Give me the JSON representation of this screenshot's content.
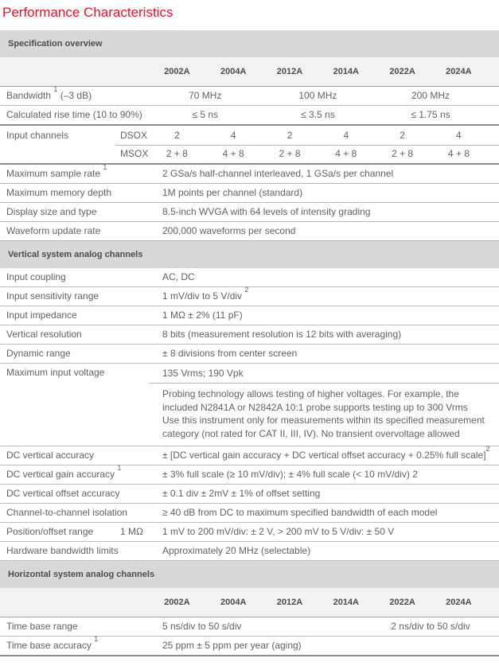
{
  "title": "Performance Characteristics",
  "accent_color": "#e8112d",
  "models": [
    "2002A",
    "2004A",
    "2012A",
    "2014A",
    "2022A",
    "2024A"
  ],
  "section_headers": {
    "overview": "Specification overview",
    "vertical": "Vertical system analog channels",
    "horizontal": "Horizontal system analog channels"
  },
  "overview": {
    "bandwidth": {
      "label": "Bandwidth ",
      "sup": "1",
      "label_rest": " (–3 dB)",
      "values": [
        "70 MHz",
        "100 MHz",
        "200 MHz"
      ]
    },
    "rise_time": {
      "label": "Calculated rise time (10 to 90%)",
      "values": [
        "≤ 5 ns",
        "≤ 3.5 ns",
        "≤ 1.75 ns"
      ]
    },
    "input_channels": {
      "label": "Input channels",
      "dsox": {
        "label": "DSOX",
        "values": [
          "2",
          "4",
          "2",
          "4",
          "2",
          "4"
        ]
      },
      "msox": {
        "label": "MSOX",
        "values": [
          "2 + 8",
          "4 + 8",
          "2 + 8",
          "4 + 8",
          "2 + 8",
          "4 + 8"
        ]
      }
    },
    "sample_rate": {
      "label": "Maximum sample rate ",
      "sup": "1",
      "value": "2 GSa/s half-channel interleaved, 1 GSa/s per channel"
    },
    "memory_depth": {
      "label": "Maximum memory depth",
      "value": "1M points per channel (standard)"
    },
    "display": {
      "label": "Display size and type",
      "value": "8.5-inch WVGA with 64 levels of intensity grading"
    },
    "update_rate": {
      "label": "Waveform update rate",
      "value": "200,000 waveforms per second"
    }
  },
  "vertical": {
    "coupling": {
      "label": "Input coupling",
      "value": "AC, DC"
    },
    "sensitivity": {
      "label": "Input sensitivity range",
      "value": "1 mV/div to 5 V/div ",
      "value_sup": "2"
    },
    "impedance": {
      "label": "Input impedance",
      "value": "1 MΩ ± 2% (11 pF)"
    },
    "resolution": {
      "label": "Vertical resolution",
      "value": "8 bits (measurement resolution is 12 bits with averaging)"
    },
    "dynamic_range": {
      "label": "Dynamic range",
      "value": "± 8 divisions from center screen"
    },
    "max_voltage": {
      "label": "Maximum input voltage",
      "value": "135 Vrms; 190 Vpk",
      "note": "Probing technology allows testing of higher voltages. For example, the\nincluded N2841A or N2842A 10:1 probe supports testing up to 300 Vrms\nUse this instrument only for measurements within its specified measurement\ncategory (not rated for CAT II, III, IV). No transient overvoltage allowed"
    },
    "dc_accuracy": {
      "label": "DC vertical accuracy",
      "value": "± [DC vertical gain accuracy + DC vertical offset accuracy + 0.25% full scale]",
      "value_sup": "2"
    },
    "gain_accuracy": {
      "label": "DC vertical gain accuracy ",
      "sup": "1",
      "value": "± 3% full scale (≥ 10 mV/div); ± 4% full scale (< 10 mV/div) 2"
    },
    "offset_accuracy": {
      "label": "DC vertical offset accuracy",
      "value": "± 0.1 div ± 2mV ± 1% of offset setting"
    },
    "isolation": {
      "label": "Channel-to-channel isolation",
      "value": "≥ 40 dB from DC to maximum specified bandwidth of each model"
    },
    "position_range": {
      "label": "Position/offset range",
      "sub": "1 MΩ",
      "value": "1 mV to 200 mV/div: ± 2 V, > 200 mV to 5 V/div: ± 50 V"
    },
    "hw_bw_limits": {
      "label": "Hardware bandwidth limits",
      "value": "Approximately 20 MHz (selectable)"
    }
  },
  "horizontal": {
    "time_base_range": {
      "label": "Time base range",
      "value_left": "5 ns/div to 50 s/div",
      "value_right": "2 ns/div to 50 s/div"
    },
    "time_base_accuracy": {
      "label": "Time base accuracy ",
      "sup": "1",
      "value": "25 ppm ±  5 ppm per year (aging)"
    }
  }
}
